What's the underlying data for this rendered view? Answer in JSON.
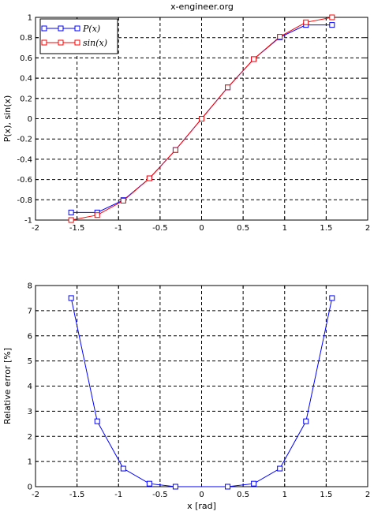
{
  "figure_title": "x-engineer.org",
  "chart_data": [
    {
      "type": "line",
      "title": "",
      "xlabel": "",
      "ylabel": "P(x), sin(x)",
      "xlim": [
        -2,
        2
      ],
      "ylim": [
        -1,
        1
      ],
      "grid": true,
      "legend_position": "top-left",
      "x_ticks": [
        "-2",
        "-1.5",
        "-1",
        "-0.5",
        "0",
        "0.5",
        "1",
        "1.5",
        "2"
      ],
      "y_ticks": [
        "-1",
        "-0.8",
        "-0.6",
        "-0.4",
        "-0.2",
        "0",
        "0.2",
        "0.4",
        "0.6",
        "0.8",
        "1"
      ],
      "x": [
        -1.5708,
        -1.2566,
        -0.9425,
        -0.6283,
        -0.3142,
        0,
        0.3142,
        0.6283,
        0.9425,
        1.2566,
        1.5708
      ],
      "series": [
        {
          "name": "P(x)",
          "legend_label": "P(x)",
          "color": "#0000ff",
          "values": [
            -0.925,
            -0.925,
            -0.803,
            -0.588,
            -0.309,
            0,
            0.309,
            0.588,
            0.803,
            0.925,
            0.925
          ]
        },
        {
          "name": "sin(x)",
          "legend_label": "sin(x)",
          "color": "#ff0000",
          "values": [
            -1.0,
            -0.951,
            -0.809,
            -0.588,
            -0.309,
            0,
            0.309,
            0.588,
            0.809,
            0.951,
            1.0
          ]
        }
      ]
    },
    {
      "type": "line",
      "title": "",
      "xlabel": "x [rad]",
      "ylabel": "Relative error [%]",
      "xlim": [
        -2,
        2
      ],
      "ylim": [
        0,
        8
      ],
      "grid": true,
      "x_ticks": [
        "-2",
        "-1.5",
        "-1",
        "-0.5",
        "0",
        "0.5",
        "1",
        "1.5",
        "2"
      ],
      "y_ticks": [
        "0",
        "1",
        "2",
        "3",
        "4",
        "5",
        "6",
        "7",
        "8"
      ],
      "x": [
        -1.5708,
        -1.2566,
        -0.9425,
        -0.6283,
        -0.3142,
        0.3142,
        0.6283,
        0.9425,
        1.2566,
        1.5708
      ],
      "series": [
        {
          "name": "",
          "color": "#0000ff",
          "values": [
            7.5,
            2.6,
            0.72,
            0.12,
            0.0,
            0.0,
            0.12,
            0.72,
            2.6,
            7.5
          ]
        }
      ]
    }
  ]
}
